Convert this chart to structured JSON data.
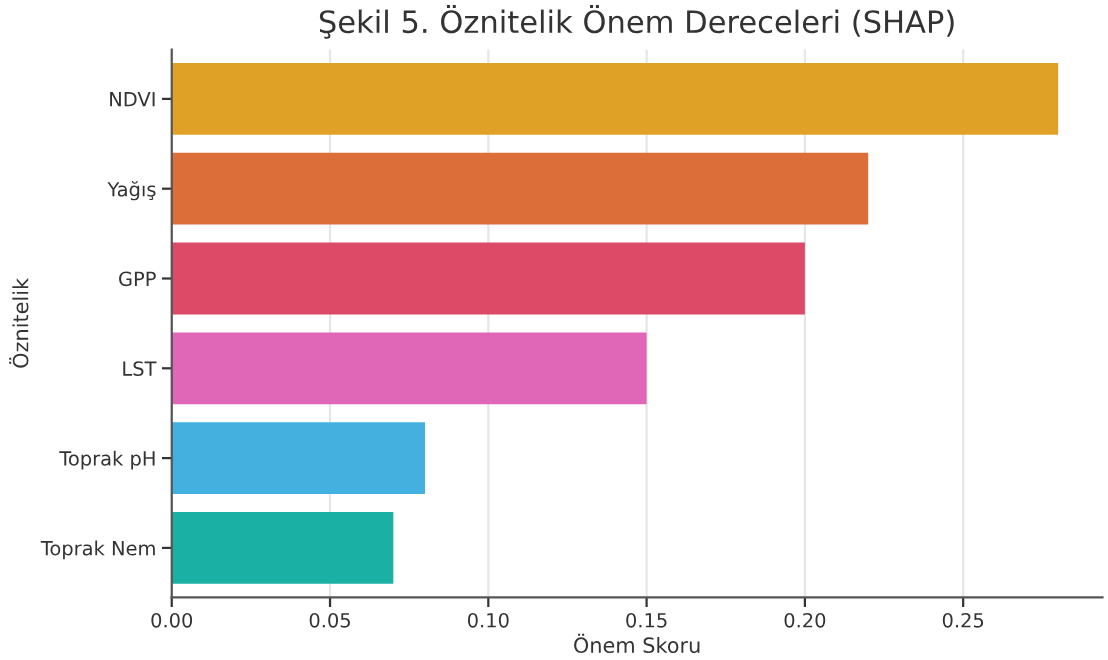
{
  "chart_data": {
    "type": "bar",
    "orientation": "horizontal",
    "title": "Şekil 5. Öznitelik Önem Dereceleri (SHAP)",
    "xlabel": "Önem Skoru",
    "ylabel": "Öznitelik",
    "categories": [
      "NDVI",
      "Yağış",
      "GPP",
      "LST",
      "Toprak pH",
      "Toprak Nem"
    ],
    "values": [
      0.28,
      0.22,
      0.2,
      0.15,
      0.08,
      0.07
    ],
    "colors": [
      "#e0a226",
      "#dc6e3a",
      "#dc4a68",
      "#e066b8",
      "#44b0e0",
      "#1ab0a4"
    ],
    "xlim": [
      0,
      0.294
    ],
    "xticks": [
      {
        "value": 0,
        "label": "0.00"
      },
      {
        "value": 0.05,
        "label": "0.05"
      },
      {
        "value": 0.1,
        "label": "0.10"
      },
      {
        "value": 0.15,
        "label": "0.15"
      },
      {
        "value": 0.2,
        "label": "0.20"
      },
      {
        "value": 0.25,
        "label": "0.25"
      }
    ],
    "grid": "x"
  }
}
